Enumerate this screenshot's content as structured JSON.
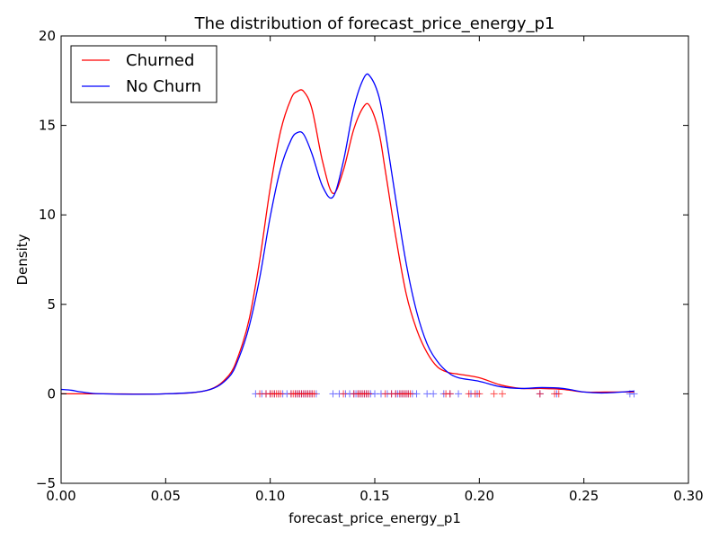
{
  "chart_data": {
    "type": "line",
    "title": "The distribution of forecast_price_energy_p1",
    "xlabel": "forecast_price_energy_p1",
    "ylabel": "Density",
    "xlim": [
      0.0,
      0.3
    ],
    "ylim": [
      -5,
      20
    ],
    "xticks": [
      "0.00",
      "0.05",
      "0.10",
      "0.15",
      "0.20",
      "0.25",
      "0.30"
    ],
    "yticks": [
      "−5",
      "0",
      "5",
      "10",
      "15",
      "20"
    ],
    "grid": false,
    "legend_position": "top-left",
    "series": [
      {
        "name": "Churned",
        "color": "#ff0000",
        "x": [
          0.0,
          0.02,
          0.05,
          0.07,
          0.08,
          0.085,
          0.09,
          0.095,
          0.1,
          0.105,
          0.11,
          0.113,
          0.116,
          0.12,
          0.125,
          0.13,
          0.135,
          0.14,
          0.145,
          0.148,
          0.152,
          0.155,
          0.16,
          0.165,
          0.17,
          0.175,
          0.18,
          0.185,
          0.19,
          0.2,
          0.21,
          0.22,
          0.23,
          0.24,
          0.25,
          0.26,
          0.274
        ],
        "y": [
          0.0,
          0.0,
          0.0,
          0.2,
          1.0,
          2.2,
          4.2,
          7.5,
          11.5,
          14.7,
          16.5,
          16.9,
          16.9,
          15.9,
          13.0,
          11.2,
          12.5,
          14.8,
          16.1,
          16.0,
          14.6,
          12.5,
          8.8,
          5.6,
          3.6,
          2.3,
          1.5,
          1.2,
          1.1,
          0.9,
          0.5,
          0.3,
          0.3,
          0.25,
          0.1,
          0.1,
          0.1
        ]
      },
      {
        "name": "No Churn",
        "color": "#0000ff",
        "x": [
          0.0,
          0.005,
          0.01,
          0.02,
          0.05,
          0.07,
          0.08,
          0.085,
          0.09,
          0.095,
          0.1,
          0.105,
          0.11,
          0.113,
          0.116,
          0.12,
          0.125,
          0.13,
          0.135,
          0.14,
          0.145,
          0.148,
          0.152,
          0.155,
          0.16,
          0.165,
          0.17,
          0.175,
          0.18,
          0.185,
          0.19,
          0.2,
          0.21,
          0.22,
          0.23,
          0.24,
          0.25,
          0.26,
          0.274
        ],
        "y": [
          0.25,
          0.2,
          0.1,
          0.0,
          0.0,
          0.2,
          0.9,
          2.0,
          3.8,
          6.5,
          9.9,
          12.6,
          14.2,
          14.6,
          14.5,
          13.4,
          11.6,
          11.0,
          13.0,
          16.0,
          17.7,
          17.7,
          16.6,
          14.7,
          10.9,
          7.3,
          4.6,
          2.8,
          1.8,
          1.2,
          0.9,
          0.7,
          0.4,
          0.3,
          0.35,
          0.3,
          0.1,
          0.05,
          0.15
        ]
      }
    ],
    "rug": {
      "churned_x": [
        0.0,
        0.095,
        0.098,
        0.1,
        0.101,
        0.102,
        0.103,
        0.104,
        0.105,
        0.11,
        0.111,
        0.112,
        0.113,
        0.114,
        0.115,
        0.116,
        0.117,
        0.118,
        0.119,
        0.12,
        0.121,
        0.135,
        0.14,
        0.142,
        0.143,
        0.144,
        0.145,
        0.146,
        0.147,
        0.155,
        0.158,
        0.16,
        0.162,
        0.163,
        0.164,
        0.165,
        0.166,
        0.167,
        0.184,
        0.186,
        0.195,
        0.198,
        0.2,
        0.207,
        0.211,
        0.229,
        0.236,
        0.238
      ],
      "nochurn_x": [
        0.0,
        0.093,
        0.096,
        0.098,
        0.1,
        0.102,
        0.104,
        0.106,
        0.108,
        0.11,
        0.112,
        0.113,
        0.114,
        0.115,
        0.116,
        0.117,
        0.118,
        0.119,
        0.12,
        0.122,
        0.13,
        0.133,
        0.136,
        0.138,
        0.14,
        0.141,
        0.142,
        0.143,
        0.144,
        0.145,
        0.146,
        0.147,
        0.148,
        0.15,
        0.153,
        0.156,
        0.158,
        0.16,
        0.161,
        0.162,
        0.163,
        0.164,
        0.165,
        0.166,
        0.168,
        0.17,
        0.175,
        0.178,
        0.183,
        0.186,
        0.19,
        0.196,
        0.199,
        0.229,
        0.237,
        0.272,
        0.274
      ]
    }
  }
}
